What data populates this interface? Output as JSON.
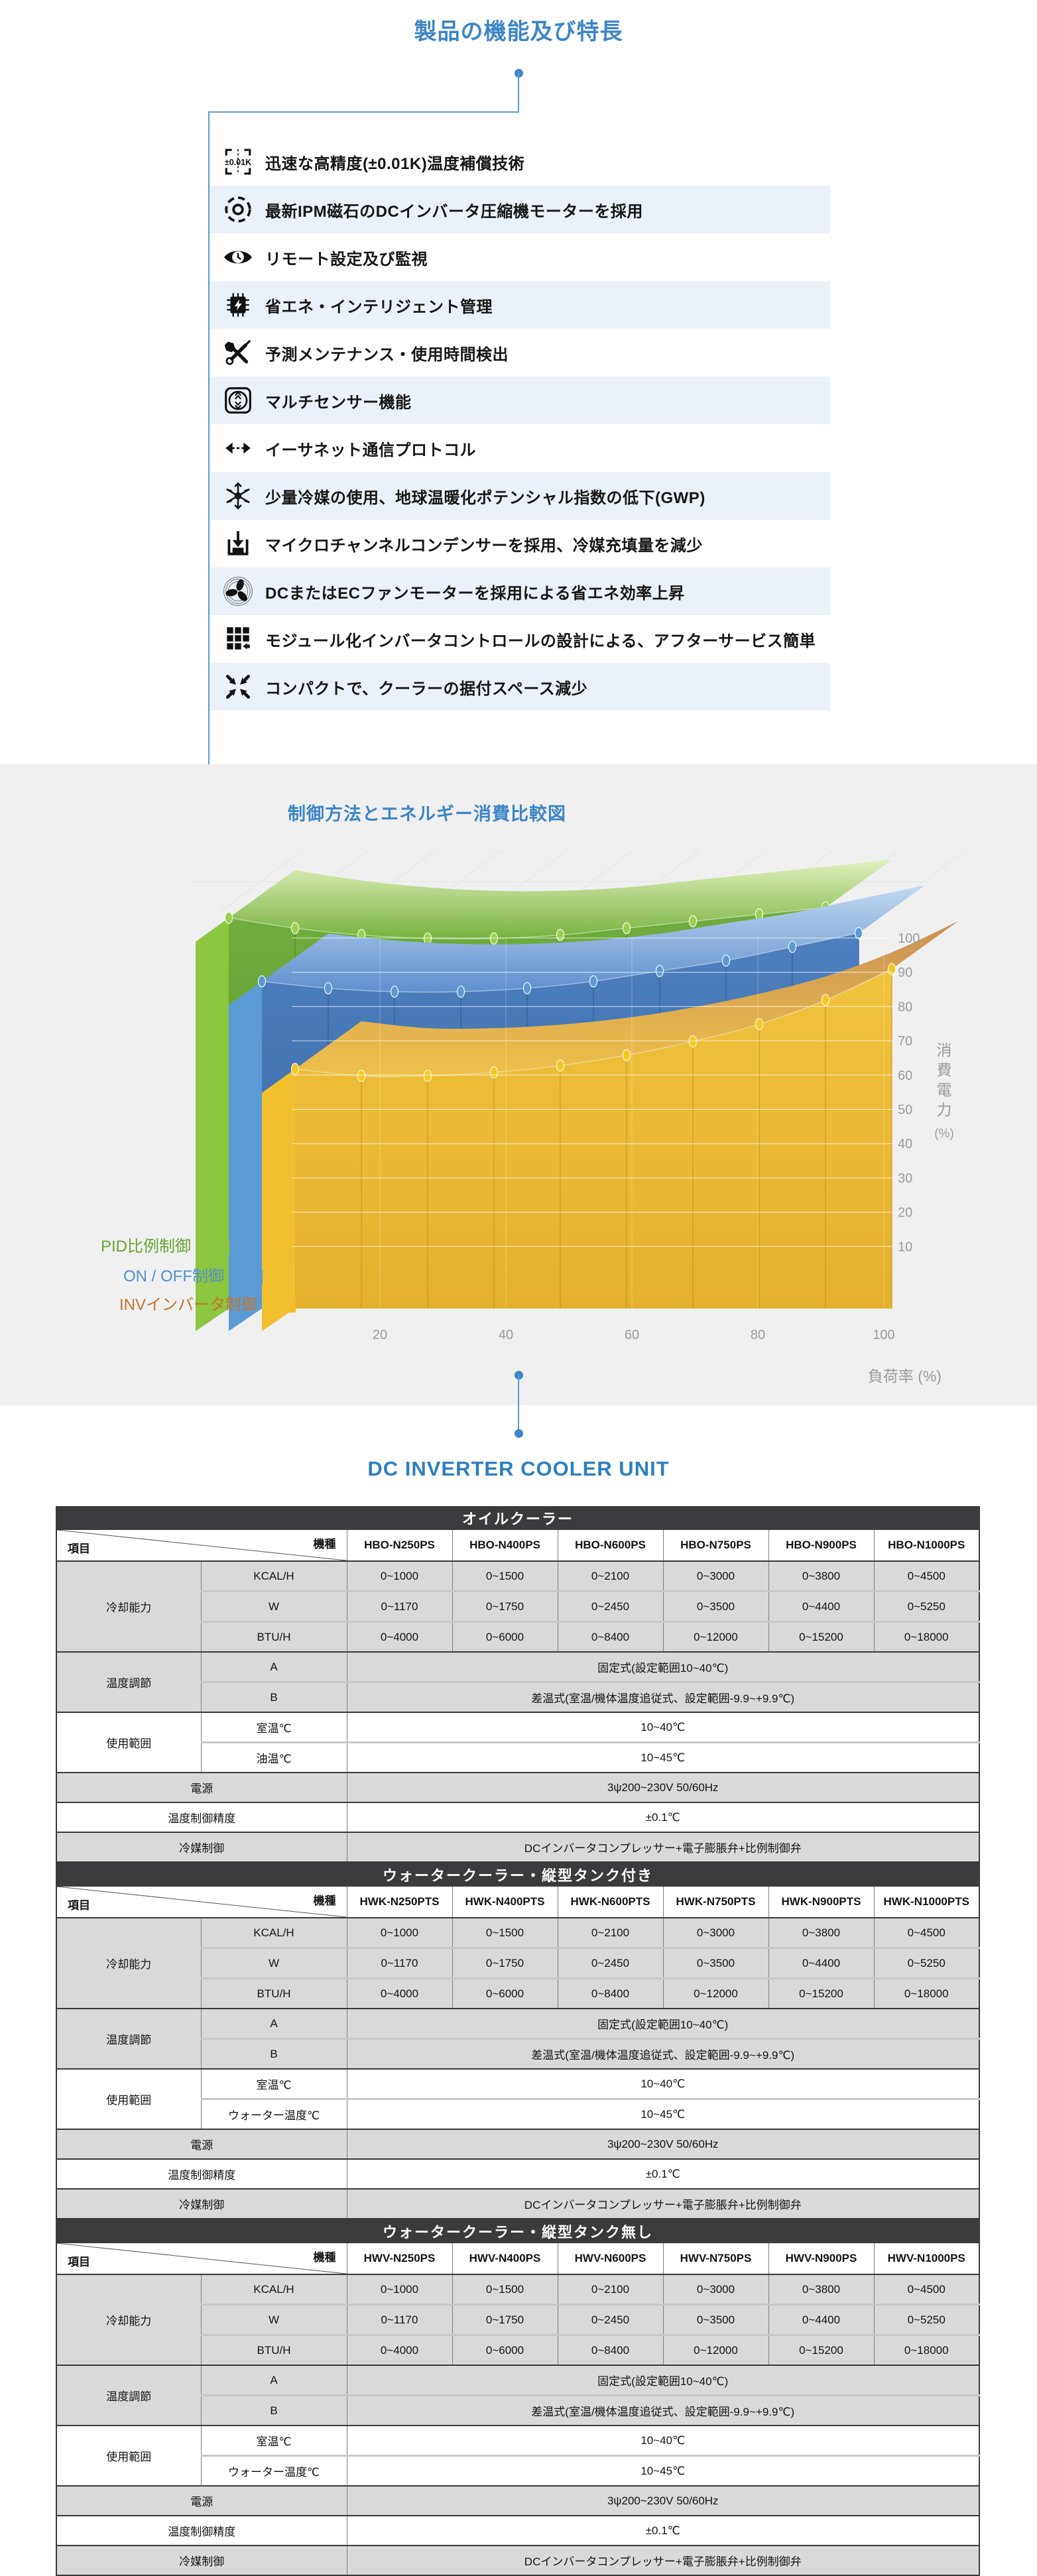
{
  "features": {
    "title": "製品の機能及び特長",
    "items": [
      {
        "icon": "precision-icon",
        "badge": "±0.01K",
        "label": "迅速な高精度(±0.01K)温度補償技術"
      },
      {
        "icon": "motor-icon",
        "label": "最新IPM磁石のDCインバータ圧縮機モーターを採用"
      },
      {
        "icon": "eye-icon",
        "label": "リモート設定及び監視"
      },
      {
        "icon": "chip-icon",
        "label": "省エネ・インテリジェント管理"
      },
      {
        "icon": "tools-icon",
        "label": "予測メンテナンス・使用時間検出"
      },
      {
        "icon": "sensor-icon",
        "label": "マルチセンサー機能"
      },
      {
        "icon": "ethernet-icon",
        "label": "イーサネット通信プロトコル"
      },
      {
        "icon": "snowflake-icon",
        "label": "少量冷媒の使用、地球温暖化ポテンシャル指数の低下(GWP)"
      },
      {
        "icon": "condenser-icon",
        "label": "マイクロチャンネルコンデンサーを採用、冷媒充填量を減少"
      },
      {
        "icon": "fan-icon",
        "label": "DCまたはECファンモーターを採用による省エネ効率上昇"
      },
      {
        "icon": "module-icon",
        "label": "モジュール化インバータコントロールの設計による、アフターサービス簡単"
      },
      {
        "icon": "compact-icon",
        "label": "コンパクトで、クーラーの据付スペース減少"
      }
    ]
  },
  "chart_section": {
    "title": "制御方法とエネルギー消費比較図"
  },
  "chart_data": {
    "type": "area",
    "projection": "3d-ribbon",
    "title": "制御方法とエネルギー消費比較図",
    "x": [
      10,
      20,
      30,
      40,
      50,
      60,
      70,
      80,
      90,
      100
    ],
    "xlabel": "負荷率 (%)",
    "ylabel": "消費電力",
    "ylabel_unit": "(%)",
    "xticks": [
      20,
      40,
      60,
      80,
      100
    ],
    "yticks": [
      10,
      20,
      30,
      40,
      50,
      60,
      70,
      80,
      90,
      100
    ],
    "ylim": [
      0,
      100
    ],
    "legend_position": "left-bottom",
    "grid": true,
    "series": [
      {
        "name": "PID比例制御",
        "values": [
          97,
          94,
          92,
          91,
          91,
          92,
          94,
          96,
          98,
          100
        ],
        "color": "#6fae3e",
        "color_dark": "#578f2f",
        "side": "#8dc63f",
        "marker": "#9ccf4e",
        "stripe": "#4f8229",
        "band_light": "#e1f0bd",
        "band_deep": "#79b23f",
        "label_color": "#69a433"
      },
      {
        "name": "ON / OFF制御",
        "values": [
          83,
          81,
          80,
          80,
          81,
          83,
          86,
          89,
          93,
          97
        ],
        "color": "#4c80c0",
        "color_dark": "#3a66a0",
        "side": "#5b9bd5",
        "marker": "#5b9bd5",
        "stripe": "#2f5c96",
        "band_light": "#c3d8ef",
        "band_deep": "#5d8fd0",
        "label_color": "#4f8fce"
      },
      {
        "name": "INVインバータ制御",
        "values": [
          62,
          60,
          60,
          61,
          63,
          66,
          70,
          75,
          82,
          91
        ],
        "color": "#f2c33d",
        "color_dark": "#e5b02c",
        "side": "#f2c02e",
        "marker": "#f6c71d",
        "stripe": "#c8931b",
        "band_light": "#c89058",
        "band_deep": "#f0c24a",
        "label_color": "#c2752b"
      }
    ]
  },
  "unit_section": {
    "title": "DC INVERTER COOLER UNIT"
  },
  "table_common": {
    "corner_item": "項目",
    "corner_model": "機種",
    "cooling_label": "冷却能力",
    "cooling_rows": [
      {
        "unit": "KCAL/H",
        "values": [
          "0~1000",
          "0~1500",
          "0~2100",
          "0~3000",
          "0~3800",
          "0~4500"
        ]
      },
      {
        "unit": "W",
        "values": [
          "0~1170",
          "0~1750",
          "0~2450",
          "0~3500",
          "0~4400",
          "0~5250"
        ]
      },
      {
        "unit": "BTU/H",
        "values": [
          "0~4000",
          "0~6000",
          "0~8400",
          "0~12000",
          "0~15200",
          "0~18000"
        ]
      }
    ],
    "temp_label": "温度調節",
    "temp_rows": [
      {
        "sub": "A",
        "value": "固定式(設定範囲10~40℃)"
      },
      {
        "sub": "B",
        "value": "差温式(室温/機体温度追従式、設定範囲-9.9~+9.9℃)"
      }
    ],
    "range_label": "使用範囲",
    "power": {
      "label": "電源",
      "value": "3ψ200~230V 50/60Hz"
    },
    "accuracy": {
      "label": "温度制御精度",
      "value": "±0.1℃"
    },
    "refrigerant": {
      "label": "冷媒制御",
      "value": "DCインバータコンプレッサー+電子膨脹弁+比例制御弁"
    }
  },
  "tables": [
    {
      "title": "オイルクーラー",
      "models": [
        "HBO-N250PS",
        "HBO-N400PS",
        "HBO-N600PS",
        "HBO-N750PS",
        "HBO-N900PS",
        "HBO-N1000PS"
      ],
      "range_rows": [
        {
          "sub": "室温℃",
          "value": "10~40℃"
        },
        {
          "sub": "油温℃",
          "value": "10~45℃"
        }
      ]
    },
    {
      "title": "ウォータークーラー・縦型タンク付き",
      "models": [
        "HWK-N250PTS",
        "HWK-N400PTS",
        "HWK-N600PTS",
        "HWK-N750PTS",
        "HWK-N900PTS",
        "HWK-N1000PTS"
      ],
      "range_rows": [
        {
          "sub": "室温℃",
          "value": "10~40℃"
        },
        {
          "sub": "ウォーター温度℃",
          "value": "10~45℃"
        }
      ]
    },
    {
      "title": "ウォータークーラー・縦型タンク無し",
      "models": [
        "HWV-N250PS",
        "HWV-N400PS",
        "HWV-N600PS",
        "HWV-N750PS",
        "HWV-N900PS",
        "HWV-N1000PS"
      ],
      "range_rows": [
        {
          "sub": "室温℃",
          "value": "10~40℃"
        },
        {
          "sub": "ウォーター温度℃",
          "value": "10~45℃"
        }
      ]
    }
  ],
  "colors": {
    "accent_blue": "#3d85c6",
    "row_alt": "#eaf1f8",
    "section_bg": "#f0f0f1",
    "table_bar": "#3b3b3d",
    "cell_gray": "#d9d9d9",
    "axis_text": "#9b9b9b"
  }
}
